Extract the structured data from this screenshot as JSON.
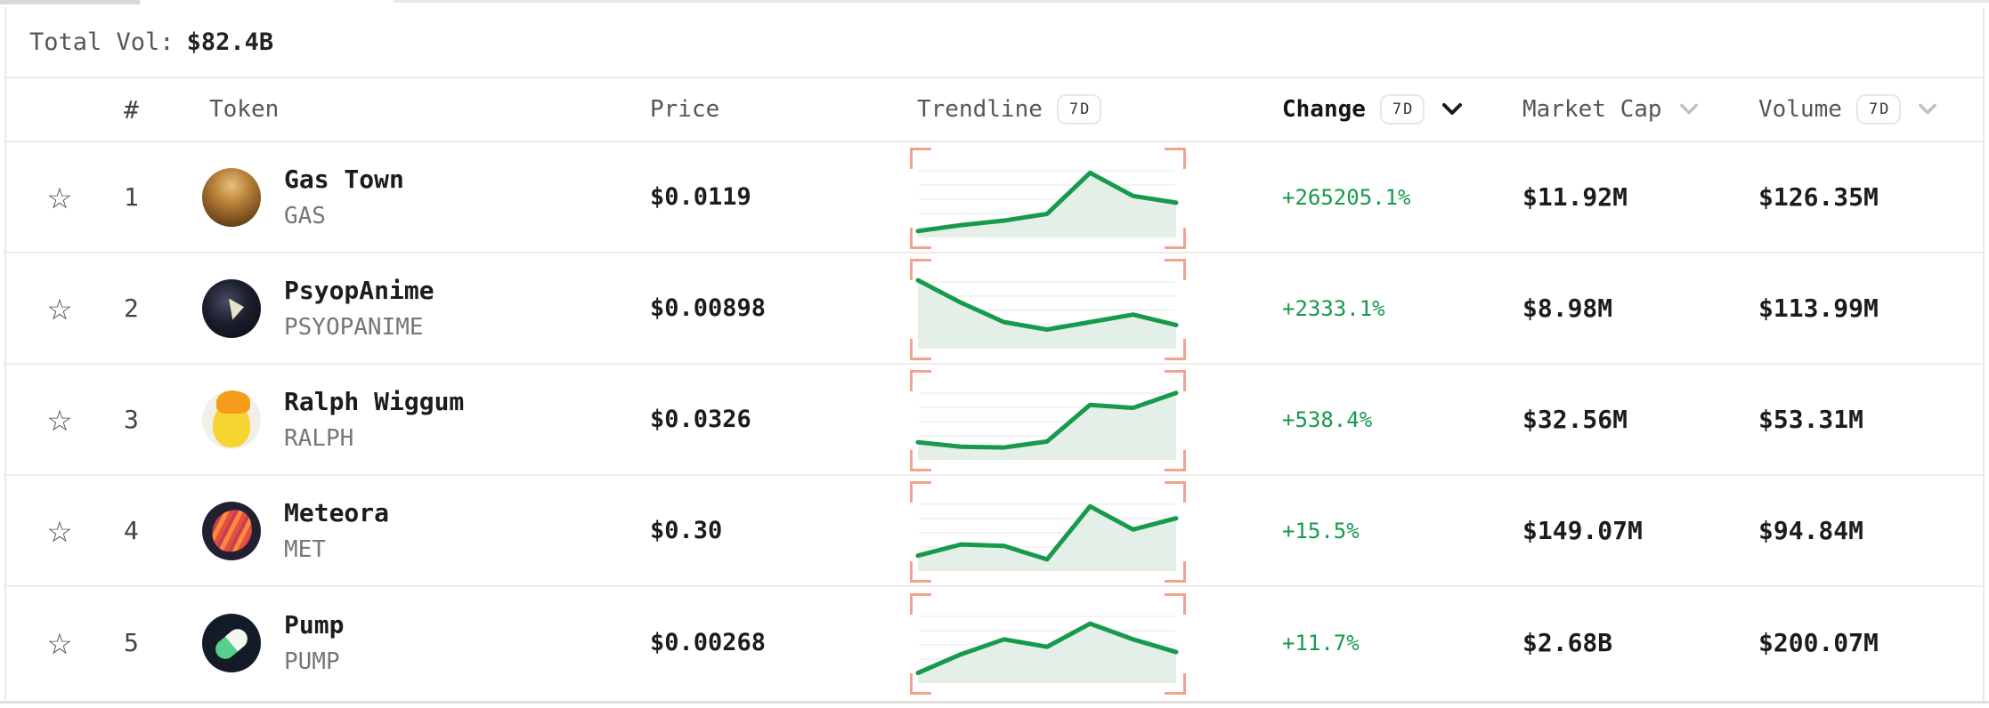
{
  "header": {
    "total_vol_label": "Total Vol:",
    "total_vol_value": "$82.4B"
  },
  "columns": {
    "rank": "#",
    "token": "Token",
    "price": "Price",
    "trendline": "Trendline",
    "trendline_badge": "7D",
    "change": "Change",
    "change_badge": "7D",
    "market_cap": "Market Cap",
    "volume": "Volume",
    "volume_badge": "7D"
  },
  "icons": {
    "favorite_star": "☆"
  },
  "colors": {
    "positive_text": "#169a4d",
    "spark_line": "#179a4c",
    "spark_fill": "#e4efe7",
    "spark_grid": "#f3f3f3",
    "bracket": "#f2a38f"
  },
  "rows": [
    {
      "rank": "1",
      "name": "Gas Town",
      "symbol": "GAS",
      "price": "$0.0119",
      "change": "+265205.1%",
      "market_cap": "$11.92M",
      "volume": "$126.35M",
      "avatar": "gas",
      "spark": [
        0.05,
        0.13,
        0.19,
        0.28,
        0.83,
        0.52,
        0.43
      ]
    },
    {
      "rank": "2",
      "name": "PsyopAnime",
      "symbol": "PSYOPANIME",
      "price": "$0.00898",
      "change": "+2333.1%",
      "market_cap": "$8.98M",
      "volume": "$113.99M",
      "avatar": "psyop",
      "spark": [
        0.88,
        0.58,
        0.32,
        0.22,
        0.32,
        0.42,
        0.28
      ]
    },
    {
      "rank": "3",
      "name": "Ralph Wiggum",
      "symbol": "RALPH",
      "price": "$0.0326",
      "change": "+538.4%",
      "market_cap": "$32.56M",
      "volume": "$53.31M",
      "avatar": "ralph",
      "spark": [
        0.2,
        0.14,
        0.13,
        0.21,
        0.7,
        0.66,
        0.86
      ]
    },
    {
      "rank": "4",
      "name": "Meteora",
      "symbol": "MET",
      "price": "$0.30",
      "change": "+15.5%",
      "market_cap": "$149.07M",
      "volume": "$94.84M",
      "avatar": "met",
      "spark": [
        0.17,
        0.32,
        0.3,
        0.12,
        0.83,
        0.52,
        0.67
      ]
    },
    {
      "rank": "5",
      "name": "Pump",
      "symbol": "PUMP",
      "price": "$0.00268",
      "change": "+11.7%",
      "market_cap": "$2.68B",
      "volume": "$200.07M",
      "avatar": "pump",
      "spark": [
        0.1,
        0.35,
        0.55,
        0.45,
        0.76,
        0.55,
        0.38
      ]
    }
  ]
}
